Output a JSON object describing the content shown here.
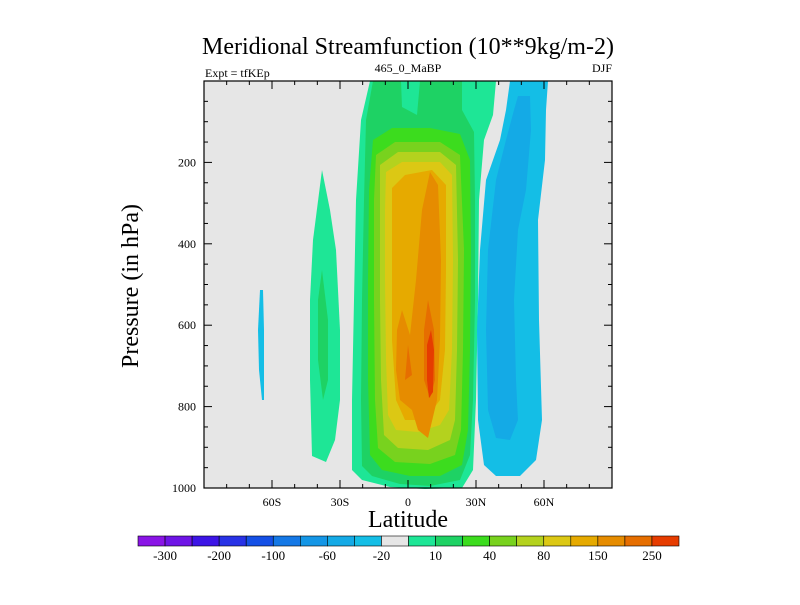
{
  "header": {
    "title": "Meridional Streamfunction (10**9kg/m-2)",
    "left_label": "Expt = tfKEp",
    "center_label": "465_0_MaBP",
    "right_label": "DJF"
  },
  "chart_data": {
    "type": "contour",
    "xlabel": "Latitude",
    "ylabel": "Pressure (in hPa)",
    "xlim": [
      -90,
      90
    ],
    "ylim": [
      1000,
      0
    ],
    "x_ticks": [
      {
        "v": -60,
        "label": "60S"
      },
      {
        "v": -30,
        "label": "30S"
      },
      {
        "v": 0,
        "label": "0"
      },
      {
        "v": 30,
        "label": "30N"
      },
      {
        "v": 60,
        "label": "60N"
      }
    ],
    "y_ticks": [
      {
        "v": 200,
        "label": "200"
      },
      {
        "v": 400,
        "label": "400"
      },
      {
        "v": 600,
        "label": "600"
      },
      {
        "v": 800,
        "label": "800"
      },
      {
        "v": 1000,
        "label": "1000"
      }
    ],
    "background_color": "#e6e6e6",
    "contour_levels": [
      -300,
      -250,
      -200,
      -150,
      -100,
      -80,
      -60,
      -40,
      -20,
      -10,
      10,
      20,
      40,
      60,
      80,
      100,
      150,
      200,
      250,
      300
    ],
    "colorbar_labels": [
      "-300",
      "-200",
      "-100",
      "-60",
      "-20",
      "10",
      "40",
      "80",
      "150",
      "250"
    ],
    "colorbar_colors": [
      "#8a14e6",
      "#6e14e6",
      "#3c14e6",
      "#2832e6",
      "#1450e6",
      "#1478e6",
      "#1496e6",
      "#14aae6",
      "#14bee6",
      "#e6e6e6",
      "#1ee696",
      "#1ed264",
      "#3cdc1e",
      "#78d21e",
      "#b4d21e",
      "#dcc814",
      "#e6aa00",
      "#e68c00",
      "#e66e00",
      "#e63c00"
    ],
    "features": [
      {
        "name": "cell-southern-mid-lat",
        "sign": "negative",
        "lat_range": [
          -62,
          -60
        ],
        "pressure_range": [
          500,
          780
        ],
        "max_level": -10
      },
      {
        "name": "cell-ferrel-south",
        "sign": "positive",
        "lat_range": [
          -42,
          -26
        ],
        "pressure_range": [
          220,
          920
        ],
        "max_level": 20
      },
      {
        "name": "cell-hadley-winter",
        "sign": "positive",
        "lat_range": [
          -18,
          28
        ],
        "pressure_range": [
          0,
          1000
        ],
        "max_level": 250
      },
      {
        "name": "cell-ferrel-north",
        "sign": "negative",
        "lat_range": [
          32,
          62
        ],
        "pressure_range": [
          0,
          960
        ],
        "max_level": -20
      }
    ]
  },
  "colors": {
    "plot_background": "#e6e6e6",
    "pos_10": "#1ee696",
    "pos_20": "#1ed264",
    "pos_40": "#3cdc1e",
    "pos_60": "#78d21e",
    "pos_80": "#b4d21e",
    "pos_100": "#dcc814",
    "pos_150": "#e6aa00",
    "pos_200": "#e68c00",
    "pos_250": "#e66e00",
    "pos_300": "#e63c00",
    "neg_10": "#14bee6",
    "neg_20": "#14aae6"
  }
}
